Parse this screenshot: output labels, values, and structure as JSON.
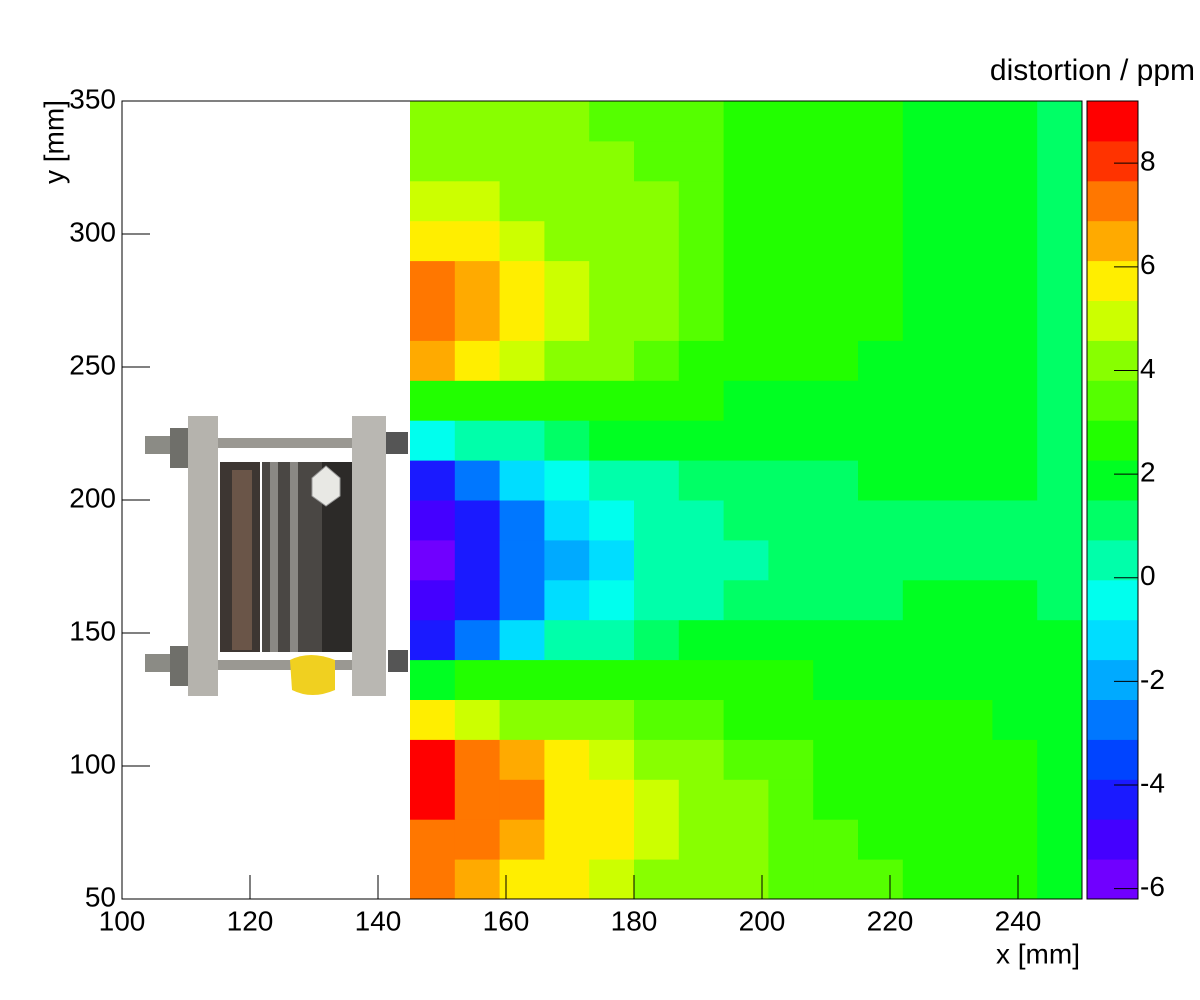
{
  "chart_data": {
    "type": "heatmap",
    "x_label": "x [mm]",
    "y_label": "y [mm]",
    "colorbar_label": "distortion / ppm",
    "xlim": [
      100,
      250
    ],
    "ylim": [
      50,
      350
    ],
    "xticks": [
      100,
      120,
      140,
      160,
      180,
      200,
      220,
      240
    ],
    "yticks": [
      50,
      100,
      150,
      200,
      250,
      300,
      350
    ],
    "zlim": [
      -6.2,
      9.2
    ],
    "zticks": [
      -6,
      -4,
      -2,
      0,
      2,
      4,
      6,
      8
    ],
    "palette": [
      "#7000ff",
      "#4400ff",
      "#1a1aff",
      "#0044ff",
      "#0077ff",
      "#00aaff",
      "#00ddff",
      "#00ffee",
      "#00ffaa",
      "#00ff66",
      "#00ff22",
      "#22ff00",
      "#55ff00",
      "#88ff00",
      "#ccff00",
      "#ffee00",
      "#ffaa00",
      "#ff7700",
      "#ff3300",
      "#ff0000"
    ],
    "xbins": [
      145,
      152,
      159,
      166,
      173,
      180,
      187,
      194,
      201,
      208,
      215,
      222,
      229,
      236,
      243,
      250
    ],
    "ybins": [
      50,
      65,
      80,
      95,
      110,
      125,
      140,
      155,
      170,
      185,
      200,
      215,
      230,
      245,
      260,
      275,
      290,
      305,
      320,
      335,
      350
    ],
    "z": [
      [
        7,
        6.5,
        6,
        5.5,
        5,
        4.5,
        4,
        4,
        3.5,
        3.5,
        3.5,
        3,
        3,
        3,
        2
      ],
      [
        7.5,
        7,
        6.5,
        6,
        5.5,
        5,
        4.5,
        4,
        3.5,
        3.5,
        3,
        3,
        3,
        2.5,
        2
      ],
      [
        8.5,
        7.5,
        7,
        6,
        5.5,
        5,
        4.5,
        4,
        3.5,
        3,
        3,
        3,
        2.5,
        2.5,
        2
      ],
      [
        8.5,
        7.5,
        6.5,
        5.5,
        5,
        4.5,
        4,
        3.5,
        3.5,
        3,
        3,
        2.5,
        2.5,
        2.5,
        2
      ],
      [
        5.5,
        5,
        4.5,
        4,
        4,
        3.5,
        3.5,
        3,
        3,
        3,
        2.5,
        2.5,
        2.5,
        2,
        2
      ],
      [
        2,
        2.5,
        2.5,
        2.5,
        2.5,
        2.5,
        2.5,
        2.5,
        2.5,
        2,
        2,
        2,
        2,
        2,
        1.5
      ],
      [
        -4,
        -2.5,
        -1,
        0,
        0.5,
        1,
        1.5,
        1.5,
        1.5,
        1.5,
        1.5,
        1.5,
        1.5,
        1.5,
        1.5
      ],
      [
        -5,
        -4,
        -3,
        -1.5,
        -0.5,
        0,
        0.5,
        1,
        1,
        1,
        1,
        1.5,
        1.5,
        1.5,
        1
      ],
      [
        -5.5,
        -4.5,
        -3,
        -2,
        -1,
        0,
        0.5,
        0.5,
        1,
        1,
        1,
        1,
        1,
        1,
        1
      ],
      [
        -5,
        -4,
        -3,
        -1.5,
        -0.5,
        0,
        0.5,
        1,
        1,
        1,
        1,
        1,
        1,
        1,
        1
      ],
      [
        -4,
        -3,
        -1.5,
        -0.5,
        0,
        0.5,
        1,
        1,
        1,
        1,
        1.5,
        1.5,
        1.5,
        1.5,
        1
      ],
      [
        -0.5,
        0,
        0.5,
        1,
        1.5,
        1.5,
        1.5,
        1.5,
        1.5,
        1.5,
        1.5,
        1.5,
        1.5,
        1.5,
        1
      ],
      [
        3,
        3,
        3,
        3,
        2.5,
        2.5,
        2.5,
        2,
        2,
        2,
        2,
        2,
        2,
        1.5,
        1
      ],
      [
        6.5,
        5.5,
        5,
        4.5,
        4,
        3.5,
        3,
        3,
        2.5,
        2.5,
        2,
        2,
        2,
        1.5,
        1
      ],
      [
        7.5,
        6.5,
        5.5,
        5,
        4.5,
        4,
        3.5,
        3,
        3,
        2.5,
        2.5,
        2,
        2,
        2,
        1
      ],
      [
        7,
        6.5,
        5.5,
        5,
        4.5,
        4,
        3.5,
        3,
        3,
        2.5,
        2.5,
        2,
        2,
        2,
        1
      ],
      [
        5.5,
        5.5,
        5,
        4.5,
        4.5,
        4,
        3.5,
        3,
        3,
        2.5,
        2.5,
        2,
        2,
        2,
        1
      ],
      [
        5,
        5,
        4.5,
        4.5,
        4,
        4,
        3.5,
        3,
        3,
        2.5,
        2.5,
        2,
        2,
        1.5,
        1
      ],
      [
        4.5,
        4.5,
        4.5,
        4,
        4,
        3.5,
        3.5,
        3,
        3,
        2.5,
        2.5,
        2,
        2,
        1.5,
        1
      ],
      [
        4,
        4,
        4,
        4,
        3.5,
        3.5,
        3.5,
        3,
        3,
        2.5,
        2.5,
        2,
        2,
        1.5,
        1
      ]
    ]
  }
}
